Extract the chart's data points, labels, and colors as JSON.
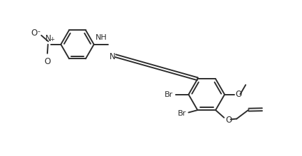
{
  "bg_color": "#ffffff",
  "line_color": "#2d2d2d",
  "line_width": 1.4,
  "font_size": 8.0,
  "fig_width": 4.33,
  "fig_height": 2.24,
  "dpi": 100,
  "xlim": [
    0,
    10
  ],
  "ylim": [
    0,
    5.2
  ]
}
